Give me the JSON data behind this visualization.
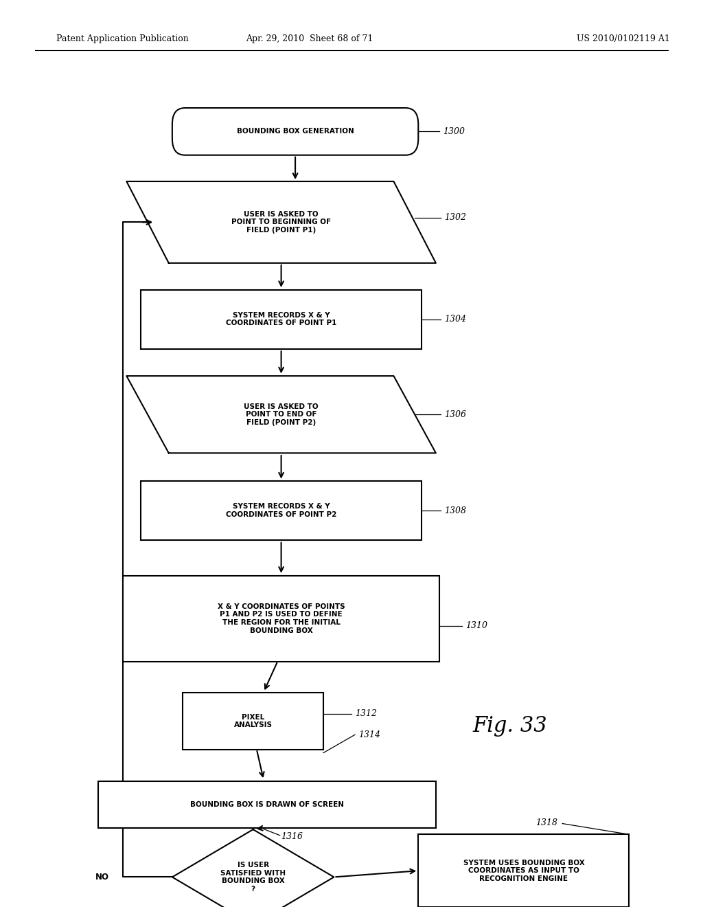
{
  "bg_color": "#ffffff",
  "header_left": "Patent Application Publication",
  "header_mid": "Apr. 29, 2010  Sheet 68 of 71",
  "header_right": "US 2010/0102119 A1",
  "fig_label": "Fig. 33",
  "line_width": 1.5,
  "font_size": 7.5,
  "tag_font_size": 9,
  "header_font_size": 9,
  "fig_font_size": 22
}
